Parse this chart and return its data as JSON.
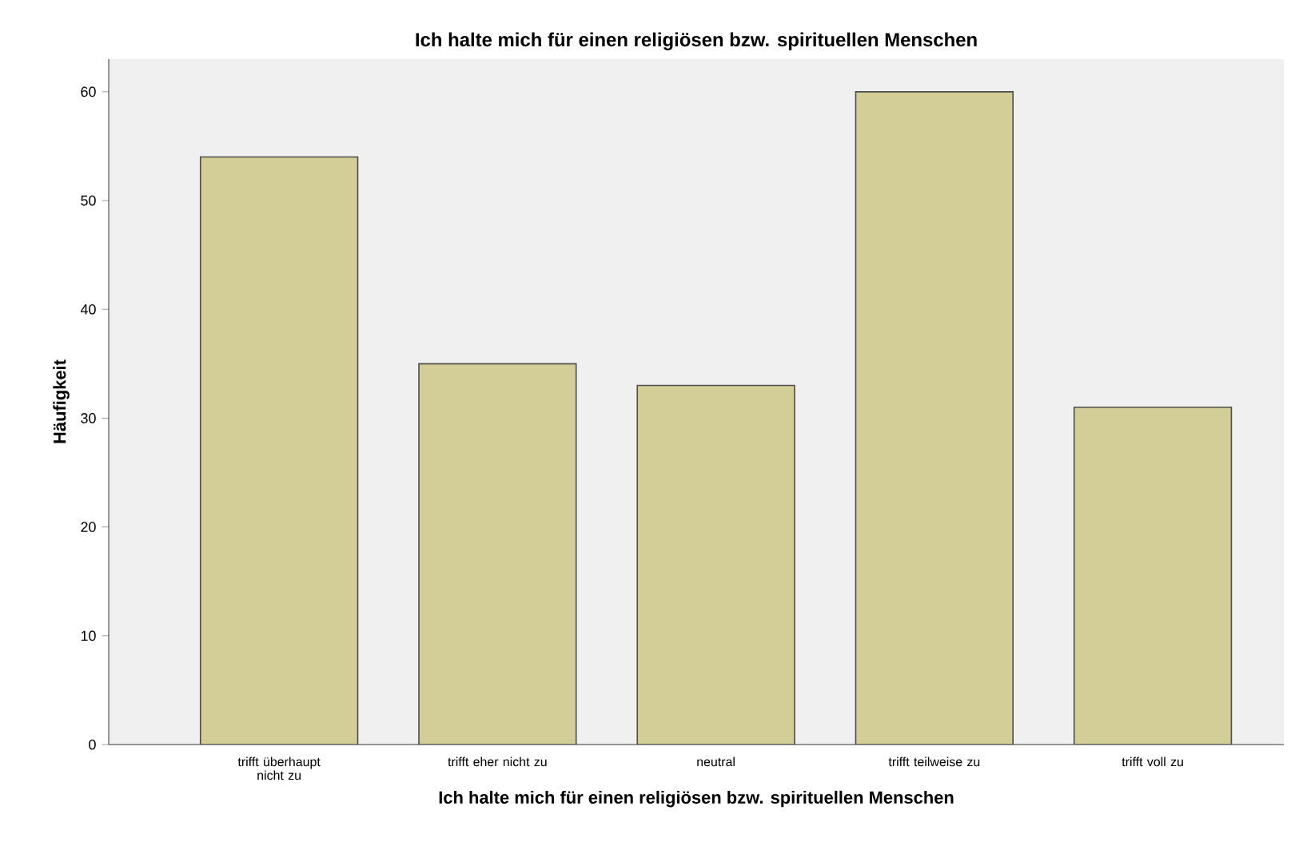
{
  "chart_data": {
    "type": "bar",
    "title": "Ich halte mich für einen religiösen bzw. spirituellen Menschen",
    "xlabel": "Ich halte mich für einen religiösen bzw. spirituellen Menschen",
    "ylabel": "Häufigkeit",
    "categories": [
      "trifft überhaupt nicht zu",
      "trifft eher nicht zu",
      "neutral",
      "trifft teilweise zu",
      "trifft voll zu"
    ],
    "values": [
      54,
      35,
      33,
      60,
      31
    ],
    "color": "#d3ce97",
    "ylim": [
      0,
      63
    ],
    "yticks": [
      0,
      10,
      20,
      30,
      40,
      50,
      60
    ],
    "grid": false
  }
}
